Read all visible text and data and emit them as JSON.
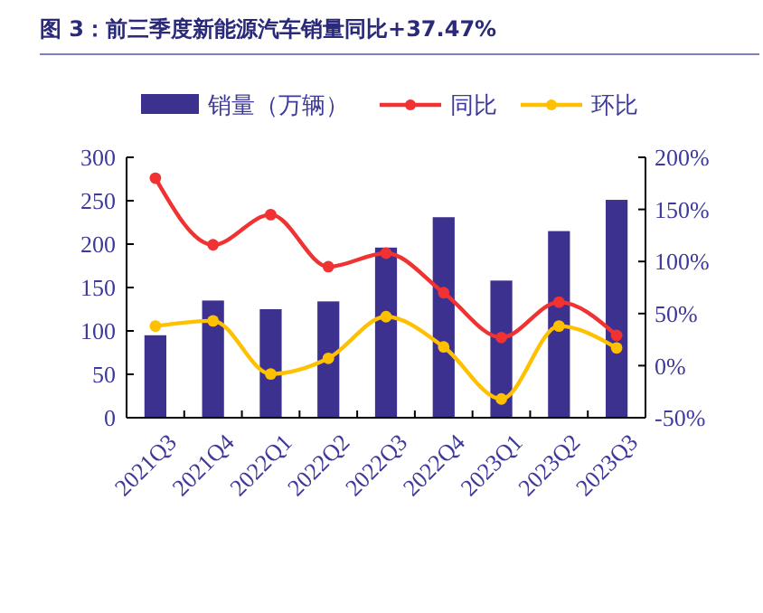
{
  "chart_data": {
    "type": "bar",
    "title": "图 3：前三季度新能源汽车销量同比+37.47%",
    "categories": [
      "2021Q3",
      "2021Q4",
      "2022Q1",
      "2022Q2",
      "2022Q3",
      "2022Q4",
      "2023Q1",
      "2023Q2",
      "2023Q3"
    ],
    "series": [
      {
        "name": "销量（万辆）",
        "color": "#3d3190",
        "values": [
          95,
          135,
          125,
          134,
          196,
          231,
          158,
          215,
          251
        ]
      },
      {
        "name": "同比",
        "color": "#f03232",
        "type": "line",
        "axis": "y2",
        "values": [
          180,
          116,
          145,
          95,
          108,
          70,
          27,
          61,
          29
        ]
      },
      {
        "name": "环比",
        "color": "#ffc000",
        "type": "line",
        "axis": "y2",
        "values": [
          38,
          43,
          -8,
          7,
          47,
          18,
          -32,
          38,
          17
        ]
      }
    ],
    "ylim": [
      0,
      300
    ],
    "yticks": [
      0,
      50,
      100,
      150,
      200,
      250,
      300
    ],
    "y2lim": [
      -50,
      200
    ],
    "y2ticks": [
      {
        "value": -50,
        "label": "-50%"
      },
      {
        "value": 0,
        "label": "0%"
      },
      {
        "value": 50,
        "label": "50%"
      },
      {
        "value": 100,
        "label": "100%"
      },
      {
        "value": 150,
        "label": "150%"
      },
      {
        "value": 200,
        "label": "200%"
      }
    ],
    "legend": "top",
    "marker": "circle",
    "grid": false
  }
}
